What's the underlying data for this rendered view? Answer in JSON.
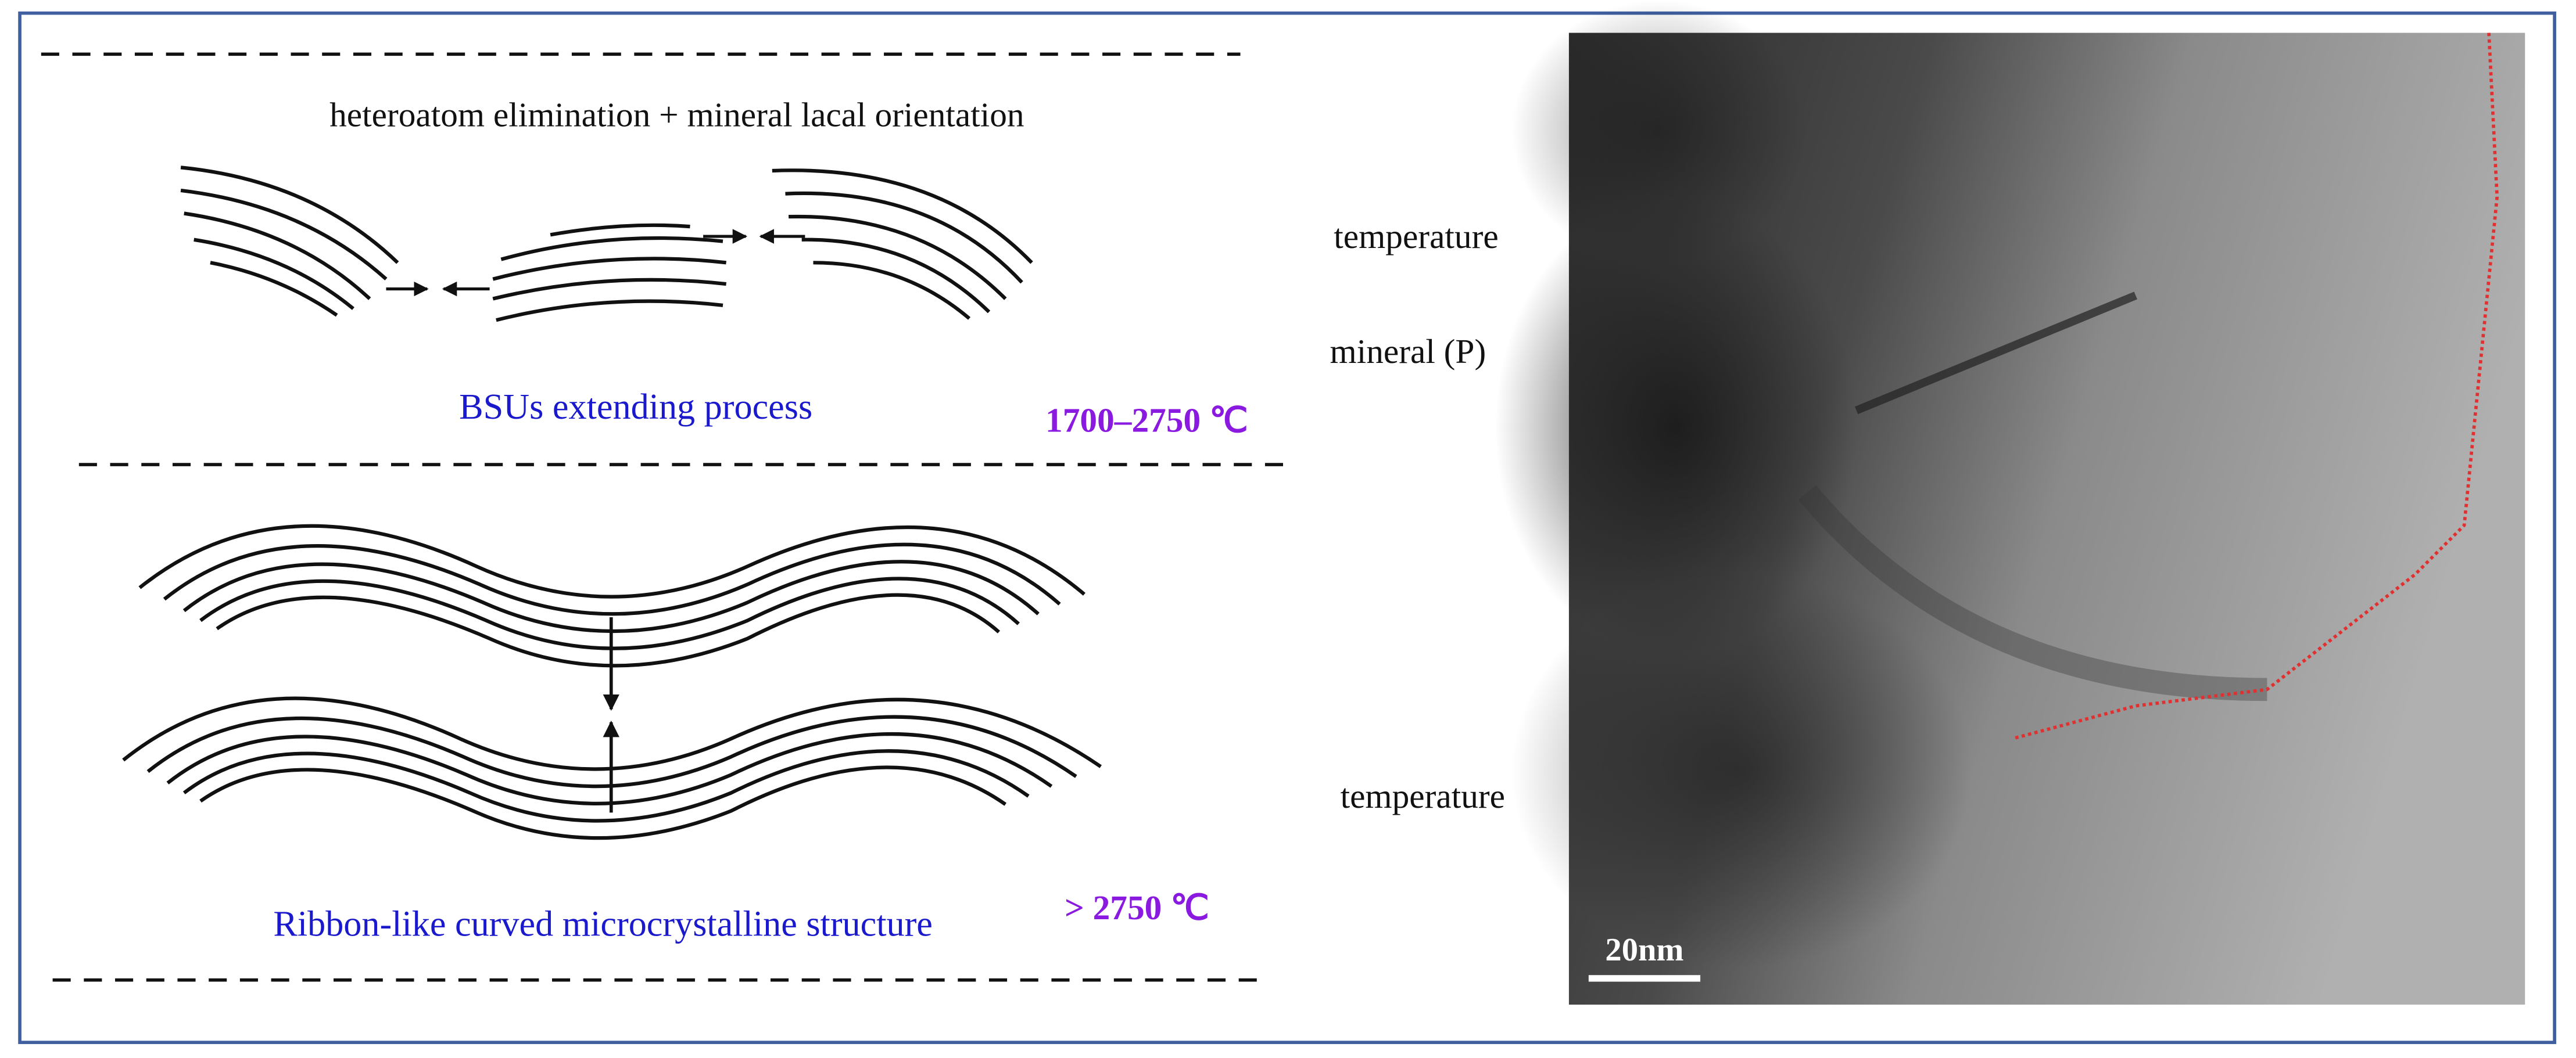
{
  "top_panel": {
    "caption": "heteroatom elimination  +   mineral lacal orientation",
    "process": "BSUs extending process",
    "temp_range": "1700–2750 ℃"
  },
  "bottom_panel": {
    "caption": "Ribbon-like curved  microcrystalline structure",
    "temp_range": "> 2750 ℃"
  },
  "labels": [
    "temperature",
    "mineral (P)",
    "temperature"
  ],
  "micrograph": {
    "scale_bar": "20nm"
  }
}
